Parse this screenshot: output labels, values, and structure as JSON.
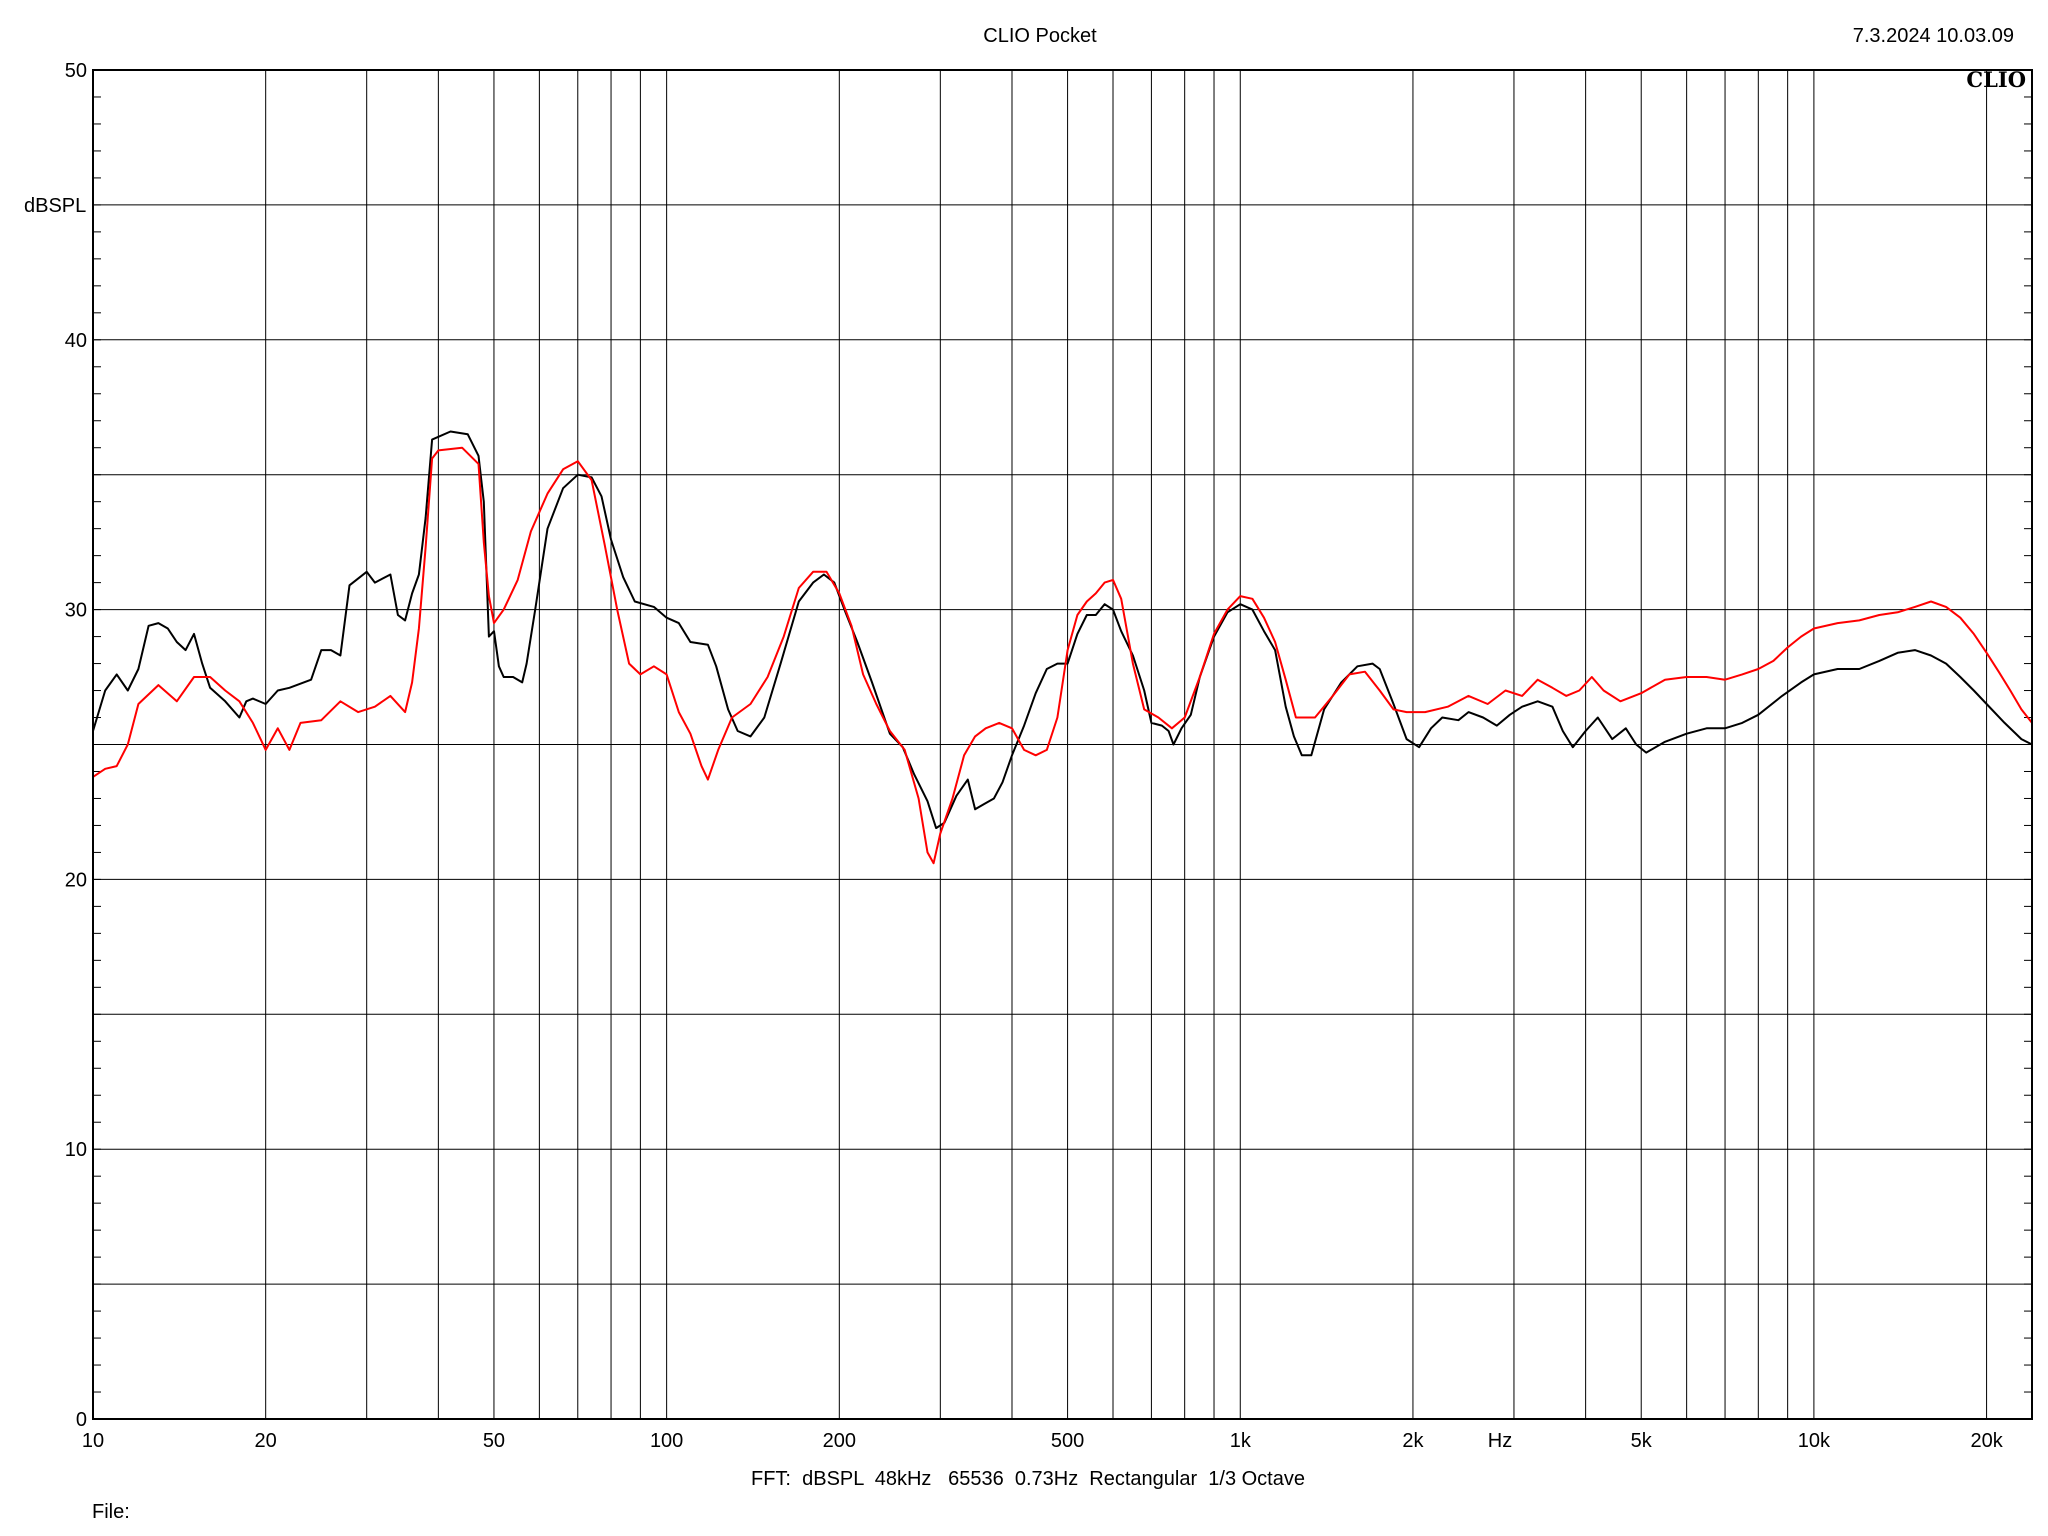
{
  "header": {
    "title": "CLIO Pocket",
    "timestamp": "7.3.2024 10.03.09",
    "logo": "CLIO"
  },
  "footer": {
    "settings": "FFT:  dBSPL  48kHz   65536  0.73Hz  Rectangular  1/3 Octave",
    "file_label": "File:"
  },
  "chart_data": {
    "type": "line",
    "title": "CLIO Pocket",
    "ylabel": "dBSPL",
    "xlabel": "Hz",
    "xscale": "log",
    "xlim": [
      10,
      24000
    ],
    "ylim": [
      0,
      50
    ],
    "grid": true,
    "x_ticks": [
      {
        "value": 10,
        "label": "10"
      },
      {
        "value": 20,
        "label": "20"
      },
      {
        "value": 50,
        "label": "50"
      },
      {
        "value": 100,
        "label": "100"
      },
      {
        "value": 200,
        "label": "200"
      },
      {
        "value": 500,
        "label": "500"
      },
      {
        "value": 1000,
        "label": "1k"
      },
      {
        "value": 2000,
        "label": "2k"
      },
      {
        "value": 5000,
        "label": "5k"
      },
      {
        "value": 10000,
        "label": "10k"
      },
      {
        "value": 20000,
        "label": "20k"
      }
    ],
    "y_ticks": [
      {
        "value": 0,
        "label": "0"
      },
      {
        "value": 10,
        "label": "10"
      },
      {
        "value": 20,
        "label": "20"
      },
      {
        "value": 30,
        "label": "30"
      },
      {
        "value": 40,
        "label": "40"
      },
      {
        "value": 50,
        "label": "50"
      }
    ],
    "series": [
      {
        "color": "#000000",
        "points": [
          [
            10,
            25.5
          ],
          [
            10.5,
            27.0
          ],
          [
            11,
            27.6
          ],
          [
            11.5,
            27.0
          ],
          [
            12,
            27.8
          ],
          [
            12.5,
            29.4
          ],
          [
            13,
            29.5
          ],
          [
            13.5,
            29.3
          ],
          [
            14,
            28.8
          ],
          [
            14.5,
            28.5
          ],
          [
            15,
            29.1
          ],
          [
            15.5,
            28.0
          ],
          [
            16,
            27.1
          ],
          [
            17,
            26.6
          ],
          [
            18,
            26.0
          ],
          [
            18.5,
            26.6
          ],
          [
            19,
            26.7
          ],
          [
            20,
            26.5
          ],
          [
            21,
            27.0
          ],
          [
            22,
            27.1
          ],
          [
            24,
            27.4
          ],
          [
            25,
            28.5
          ],
          [
            26,
            28.5
          ],
          [
            27,
            28.3
          ],
          [
            28,
            30.9
          ],
          [
            30,
            31.4
          ],
          [
            31,
            31.0
          ],
          [
            33,
            31.3
          ],
          [
            34,
            29.8
          ],
          [
            35,
            29.6
          ],
          [
            36,
            30.6
          ],
          [
            37,
            31.3
          ],
          [
            38,
            33.4
          ],
          [
            39,
            36.3
          ],
          [
            42,
            36.6
          ],
          [
            45,
            36.5
          ],
          [
            47,
            35.7
          ],
          [
            48,
            34.0
          ],
          [
            49,
            29.0
          ],
          [
            50,
            29.2
          ],
          [
            51,
            27.9
          ],
          [
            52,
            27.5
          ],
          [
            54,
            27.5
          ],
          [
            56,
            27.3
          ],
          [
            57,
            28.0
          ],
          [
            59,
            30.0
          ],
          [
            62,
            33.0
          ],
          [
            66,
            34.5
          ],
          [
            70,
            35.0
          ],
          [
            74,
            34.9
          ],
          [
            77,
            34.2
          ],
          [
            80,
            32.6
          ],
          [
            84,
            31.2
          ],
          [
            88,
            30.3
          ],
          [
            95,
            30.1
          ],
          [
            100,
            29.7
          ],
          [
            105,
            29.5
          ],
          [
            110,
            28.8
          ],
          [
            118,
            28.7
          ],
          [
            122,
            27.9
          ],
          [
            128,
            26.3
          ],
          [
            133,
            25.5
          ],
          [
            140,
            25.3
          ],
          [
            148,
            26.0
          ],
          [
            158,
            28.0
          ],
          [
            170,
            30.3
          ],
          [
            180,
            31.0
          ],
          [
            188,
            31.3
          ],
          [
            196,
            31.0
          ],
          [
            205,
            29.9
          ],
          [
            215,
            28.8
          ],
          [
            228,
            27.3
          ],
          [
            245,
            25.4
          ],
          [
            258,
            24.9
          ],
          [
            270,
            23.9
          ],
          [
            285,
            22.9
          ],
          [
            295,
            21.9
          ],
          [
            305,
            22.1
          ],
          [
            320,
            23.1
          ],
          [
            335,
            23.7
          ],
          [
            345,
            22.6
          ],
          [
            358,
            22.8
          ],
          [
            372,
            23.0
          ],
          [
            385,
            23.6
          ],
          [
            400,
            24.6
          ],
          [
            420,
            25.7
          ],
          [
            440,
            26.9
          ],
          [
            460,
            27.8
          ],
          [
            480,
            28.0
          ],
          [
            500,
            28.0
          ],
          [
            520,
            29.1
          ],
          [
            540,
            29.8
          ],
          [
            560,
            29.8
          ],
          [
            580,
            30.2
          ],
          [
            600,
            30.0
          ],
          [
            620,
            29.2
          ],
          [
            650,
            28.3
          ],
          [
            680,
            27.0
          ],
          [
            700,
            25.8
          ],
          [
            730,
            25.7
          ],
          [
            750,
            25.5
          ],
          [
            765,
            25.0
          ],
          [
            790,
            25.6
          ],
          [
            820,
            26.1
          ],
          [
            850,
            27.5
          ],
          [
            900,
            29.0
          ],
          [
            950,
            29.9
          ],
          [
            1000,
            30.2
          ],
          [
            1050,
            30.0
          ],
          [
            1100,
            29.2
          ],
          [
            1150,
            28.5
          ],
          [
            1200,
            26.4
          ],
          [
            1240,
            25.3
          ],
          [
            1280,
            24.6
          ],
          [
            1330,
            24.6
          ],
          [
            1400,
            26.3
          ],
          [
            1500,
            27.3
          ],
          [
            1600,
            27.9
          ],
          [
            1700,
            28.0
          ],
          [
            1750,
            27.8
          ],
          [
            1850,
            26.5
          ],
          [
            1950,
            25.2
          ],
          [
            2050,
            24.9
          ],
          [
            2150,
            25.6
          ],
          [
            2250,
            26.0
          ],
          [
            2400,
            25.9
          ],
          [
            2500,
            26.2
          ],
          [
            2650,
            26.0
          ],
          [
            2800,
            25.7
          ],
          [
            2950,
            26.1
          ],
          [
            3100,
            26.4
          ],
          [
            3300,
            26.6
          ],
          [
            3500,
            26.4
          ],
          [
            3650,
            25.5
          ],
          [
            3800,
            24.9
          ],
          [
            4000,
            25.5
          ],
          [
            4200,
            26.0
          ],
          [
            4450,
            25.2
          ],
          [
            4700,
            25.6
          ],
          [
            4900,
            25.0
          ],
          [
            5100,
            24.7
          ],
          [
            5500,
            25.1
          ],
          [
            6000,
            25.4
          ],
          [
            6500,
            25.6
          ],
          [
            7000,
            25.6
          ],
          [
            7500,
            25.8
          ],
          [
            8000,
            26.1
          ],
          [
            8800,
            26.8
          ],
          [
            9500,
            27.3
          ],
          [
            10000,
            27.6
          ],
          [
            11000,
            27.8
          ],
          [
            12000,
            27.8
          ],
          [
            13000,
            28.1
          ],
          [
            14000,
            28.4
          ],
          [
            15000,
            28.5
          ],
          [
            16000,
            28.3
          ],
          [
            17000,
            28.0
          ],
          [
            18000,
            27.5
          ],
          [
            19000,
            27.0
          ],
          [
            20000,
            26.5
          ],
          [
            21500,
            25.8
          ],
          [
            23000,
            25.2
          ],
          [
            24000,
            25.0
          ]
        ]
      },
      {
        "color": "#ff0000",
        "points": [
          [
            10,
            23.8
          ],
          [
            10.5,
            24.1
          ],
          [
            11,
            24.2
          ],
          [
            11.5,
            25.0
          ],
          [
            12,
            26.5
          ],
          [
            13,
            27.2
          ],
          [
            14,
            26.6
          ],
          [
            15,
            27.5
          ],
          [
            16,
            27.5
          ],
          [
            17,
            27.0
          ],
          [
            18,
            26.6
          ],
          [
            19,
            25.8
          ],
          [
            20,
            24.8
          ],
          [
            21,
            25.6
          ],
          [
            22,
            24.8
          ],
          [
            23,
            25.8
          ],
          [
            25,
            25.9
          ],
          [
            27,
            26.6
          ],
          [
            29,
            26.2
          ],
          [
            31,
            26.4
          ],
          [
            33,
            26.8
          ],
          [
            35,
            26.2
          ],
          [
            36,
            27.3
          ],
          [
            37,
            29.3
          ],
          [
            38,
            32.3
          ],
          [
            39,
            35.6
          ],
          [
            40,
            35.9
          ],
          [
            44,
            36.0
          ],
          [
            47,
            35.4
          ],
          [
            48,
            32.5
          ],
          [
            49,
            30.5
          ],
          [
            50,
            29.5
          ],
          [
            52,
            30.0
          ],
          [
            55,
            31.1
          ],
          [
            58,
            32.9
          ],
          [
            62,
            34.3
          ],
          [
            66,
            35.2
          ],
          [
            70,
            35.5
          ],
          [
            74,
            34.8
          ],
          [
            78,
            32.4
          ],
          [
            82,
            30.0
          ],
          [
            86,
            28.0
          ],
          [
            90,
            27.6
          ],
          [
            95,
            27.9
          ],
          [
            100,
            27.6
          ],
          [
            105,
            26.2
          ],
          [
            110,
            25.4
          ],
          [
            115,
            24.2
          ],
          [
            118,
            23.7
          ],
          [
            123,
            24.8
          ],
          [
            130,
            26.0
          ],
          [
            140,
            26.5
          ],
          [
            150,
            27.5
          ],
          [
            160,
            29.0
          ],
          [
            170,
            30.8
          ],
          [
            180,
            31.4
          ],
          [
            190,
            31.4
          ],
          [
            200,
            30.6
          ],
          [
            210,
            29.4
          ],
          [
            220,
            27.6
          ],
          [
            232,
            26.5
          ],
          [
            245,
            25.5
          ],
          [
            260,
            24.8
          ],
          [
            275,
            23.0
          ],
          [
            285,
            21.0
          ],
          [
            292,
            20.6
          ],
          [
            300,
            21.7
          ],
          [
            315,
            23.0
          ],
          [
            330,
            24.6
          ],
          [
            345,
            25.3
          ],
          [
            360,
            25.6
          ],
          [
            380,
            25.8
          ],
          [
            400,
            25.6
          ],
          [
            420,
            24.8
          ],
          [
            440,
            24.6
          ],
          [
            460,
            24.8
          ],
          [
            480,
            26.0
          ],
          [
            500,
            28.5
          ],
          [
            520,
            29.8
          ],
          [
            540,
            30.3
          ],
          [
            560,
            30.6
          ],
          [
            580,
            31.0
          ],
          [
            600,
            31.1
          ],
          [
            620,
            30.4
          ],
          [
            650,
            28.0
          ],
          [
            680,
            26.3
          ],
          [
            720,
            26.0
          ],
          [
            760,
            25.6
          ],
          [
            800,
            26.0
          ],
          [
            850,
            27.5
          ],
          [
            900,
            29.1
          ],
          [
            950,
            30.0
          ],
          [
            1000,
            30.5
          ],
          [
            1050,
            30.4
          ],
          [
            1100,
            29.7
          ],
          [
            1150,
            28.8
          ],
          [
            1200,
            27.4
          ],
          [
            1250,
            26.0
          ],
          [
            1350,
            26.0
          ],
          [
            1450,
            26.8
          ],
          [
            1550,
            27.6
          ],
          [
            1650,
            27.7
          ],
          [
            1750,
            27.0
          ],
          [
            1850,
            26.3
          ],
          [
            1950,
            26.2
          ],
          [
            2100,
            26.2
          ],
          [
            2300,
            26.4
          ],
          [
            2500,
            26.8
          ],
          [
            2700,
            26.5
          ],
          [
            2900,
            27.0
          ],
          [
            3100,
            26.8
          ],
          [
            3300,
            27.4
          ],
          [
            3500,
            27.1
          ],
          [
            3700,
            26.8
          ],
          [
            3900,
            27.0
          ],
          [
            4100,
            27.5
          ],
          [
            4300,
            27.0
          ],
          [
            4600,
            26.6
          ],
          [
            5000,
            26.9
          ],
          [
            5500,
            27.4
          ],
          [
            6000,
            27.5
          ],
          [
            6500,
            27.5
          ],
          [
            7000,
            27.4
          ],
          [
            7500,
            27.6
          ],
          [
            8000,
            27.8
          ],
          [
            8500,
            28.1
          ],
          [
            9000,
            28.6
          ],
          [
            9500,
            29.0
          ],
          [
            10000,
            29.3
          ],
          [
            11000,
            29.5
          ],
          [
            12000,
            29.6
          ],
          [
            13000,
            29.8
          ],
          [
            14000,
            29.9
          ],
          [
            15000,
            30.1
          ],
          [
            16000,
            30.3
          ],
          [
            17000,
            30.1
          ],
          [
            18000,
            29.7
          ],
          [
            19000,
            29.1
          ],
          [
            20000,
            28.4
          ],
          [
            21000,
            27.7
          ],
          [
            22000,
            27.0
          ],
          [
            23000,
            26.3
          ],
          [
            24000,
            25.8
          ]
        ]
      }
    ]
  }
}
